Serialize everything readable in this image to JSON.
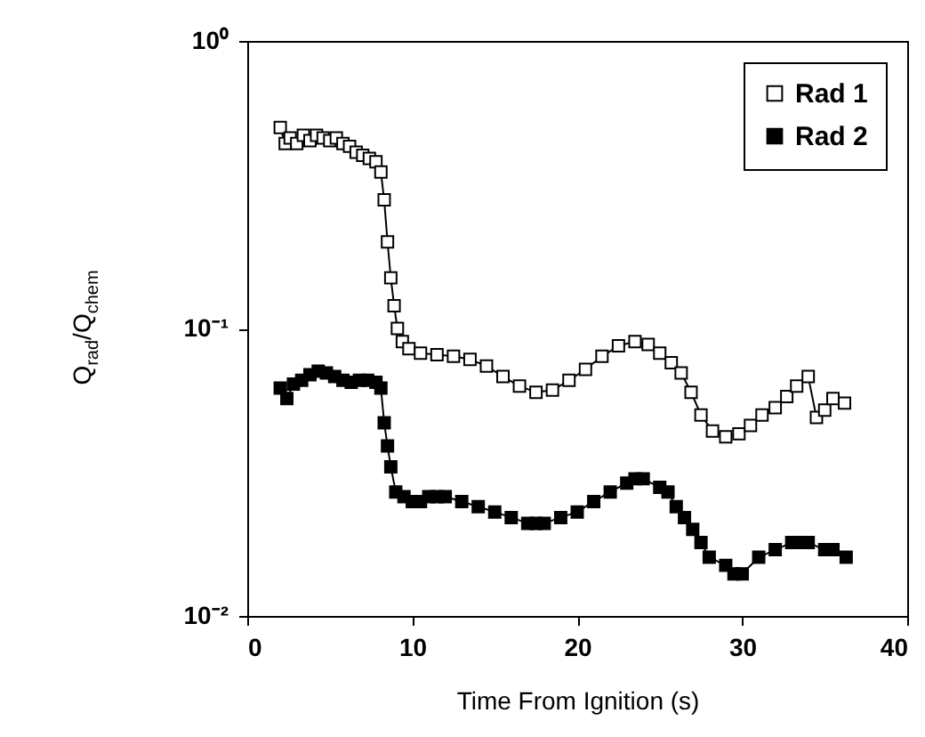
{
  "chart_data": {
    "type": "line",
    "xlabel": "Time From Ignition (s)",
    "ylabel": "Q$_{rad}$/Q$_{chem}$",
    "log": "y",
    "xlim": [
      0,
      40
    ],
    "xticks": [
      0,
      10,
      20,
      30,
      40
    ],
    "ylim": [
      0.01,
      1
    ],
    "yticks": [
      {
        "value": 0.01,
        "label": "10⁻²"
      },
      {
        "value": 0.1,
        "label": "10⁻¹"
      },
      {
        "value": 1,
        "label": "10⁰"
      }
    ],
    "grid": false,
    "legend": "top right",
    "marker": "square",
    "line_style": "solid",
    "series": [
      {
        "name": "Rad 1",
        "color": "#000000",
        "x": [
          2,
          2.3,
          2.6,
          3,
          3.4,
          3.8,
          4.2,
          4.6,
          5,
          5.4,
          5.8,
          6.2,
          6.6,
          7,
          7.4,
          7.8,
          8.1,
          8.3,
          8.5,
          8.7,
          8.9,
          9.1,
          9.4,
          9.8,
          10.5,
          11.5,
          12.5,
          13.5,
          14.5,
          15.5,
          16.5,
          17.5,
          18.5,
          19.5,
          20.5,
          21.5,
          22.5,
          23.5,
          24.3,
          25,
          25.7,
          26.3,
          26.9,
          27.5,
          28.2,
          29,
          29.8,
          30.5,
          31.2,
          32,
          32.7,
          33.3,
          34,
          34.5,
          35,
          35.5,
          36.2
        ],
        "values": [
          0.5,
          0.44,
          0.46,
          0.44,
          0.47,
          0.45,
          0.47,
          0.46,
          0.45,
          0.46,
          0.44,
          0.43,
          0.41,
          0.4,
          0.39,
          0.38,
          0.35,
          0.28,
          0.2,
          0.15,
          0.12,
          0.1,
          0.09,
          0.085,
          0.082,
          0.081,
          0.08,
          0.078,
          0.074,
          0.068,
          0.063,
          0.06,
          0.061,
          0.066,
          0.072,
          0.08,
          0.087,
          0.09,
          0.088,
          0.082,
          0.076,
          0.07,
          0.06,
          0.05,
          0.044,
          0.042,
          0.043,
          0.046,
          0.05,
          0.053,
          0.058,
          0.063,
          0.068,
          0.049,
          0.052,
          0.057,
          0.055
        ]
      },
      {
        "name": "Rad 2",
        "color": "#000000",
        "x": [
          2,
          2.4,
          2.8,
          3.3,
          3.8,
          4.3,
          4.8,
          5.3,
          5.8,
          6.3,
          6.8,
          7.3,
          7.8,
          8.1,
          8.3,
          8.5,
          8.7,
          9,
          9.5,
          10,
          10.5,
          11,
          11.5,
          12,
          13,
          14,
          15,
          16,
          17,
          17.5,
          18,
          19,
          20,
          21,
          22,
          23,
          23.5,
          24,
          25,
          25.5,
          26,
          26.5,
          27,
          27.5,
          28,
          29,
          29.5,
          30,
          31,
          32,
          33,
          33.5,
          34,
          35,
          35.5,
          36.3
        ],
        "values": [
          0.062,
          0.057,
          0.064,
          0.066,
          0.069,
          0.071,
          0.07,
          0.068,
          0.066,
          0.065,
          0.066,
          0.066,
          0.065,
          0.062,
          0.047,
          0.039,
          0.033,
          0.027,
          0.026,
          0.025,
          0.025,
          0.026,
          0.026,
          0.026,
          0.025,
          0.024,
          0.023,
          0.022,
          0.021,
          0.021,
          0.021,
          0.022,
          0.023,
          0.025,
          0.027,
          0.029,
          0.03,
          0.03,
          0.028,
          0.027,
          0.024,
          0.022,
          0.02,
          0.018,
          0.016,
          0.015,
          0.014,
          0.014,
          0.016,
          0.017,
          0.018,
          0.018,
          0.018,
          0.017,
          0.017,
          0.016
        ]
      }
    ]
  }
}
